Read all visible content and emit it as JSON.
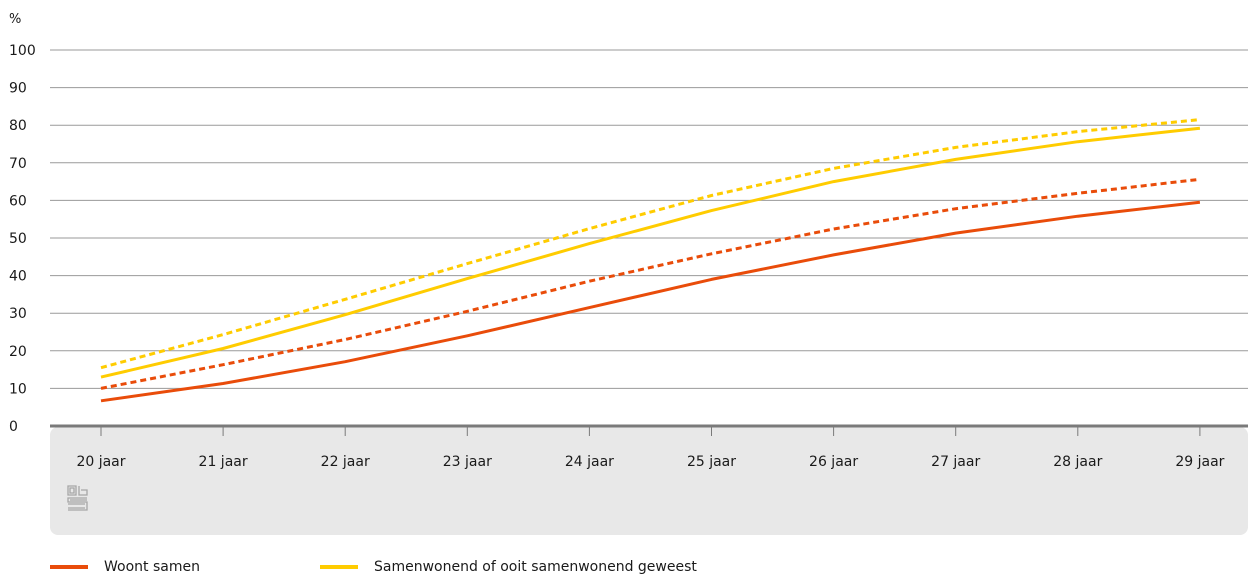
{
  "chart_data": {
    "type": "line",
    "title": "",
    "y_unit_label": "%",
    "xlabel": "",
    "ylabel": "",
    "ylim": [
      0,
      100
    ],
    "y_ticks": [
      0,
      10,
      20,
      30,
      40,
      50,
      60,
      70,
      80,
      90,
      100
    ],
    "categories": [
      "20 jaar",
      "21 jaar",
      "22 jaar",
      "23 jaar",
      "24 jaar",
      "25 jaar",
      "26 jaar",
      "27 jaar",
      "28 jaar",
      "29 jaar"
    ],
    "grid": true,
    "legend_position": "bottom-left",
    "series": [
      {
        "name": "Woont samen",
        "color": "#e94c0a",
        "style": "solid",
        "values": [
          6.7,
          11.3,
          17.1,
          24.0,
          31.5,
          39.0,
          45.5,
          51.3,
          55.8,
          59.5
        ]
      },
      {
        "name": "",
        "color": "#e94c0a",
        "style": "dotted",
        "values": [
          10.0,
          16.3,
          23.0,
          30.5,
          38.5,
          45.8,
          52.4,
          57.8,
          61.9,
          65.6
        ]
      },
      {
        "name": "Samenwonend of ooit samenwonend geweest",
        "color": "#ffcc00",
        "style": "solid",
        "values": [
          13.0,
          20.6,
          29.6,
          39.2,
          48.5,
          57.3,
          65.0,
          70.9,
          75.6,
          79.2
        ]
      },
      {
        "name": "",
        "color": "#ffcc00",
        "style": "dotted",
        "values": [
          15.5,
          24.3,
          33.7,
          43.2,
          52.5,
          61.3,
          68.5,
          74.1,
          78.3,
          81.5
        ]
      }
    ]
  },
  "legend": {
    "items": [
      {
        "label": "Woont samen",
        "color": "#e94c0a"
      },
      {
        "label": "Samenwonend of ooit samenwonend geweest",
        "color": "#ffcc00"
      }
    ]
  },
  "logo": {
    "name": "cbs-logo",
    "color": "#a6a6a6"
  }
}
